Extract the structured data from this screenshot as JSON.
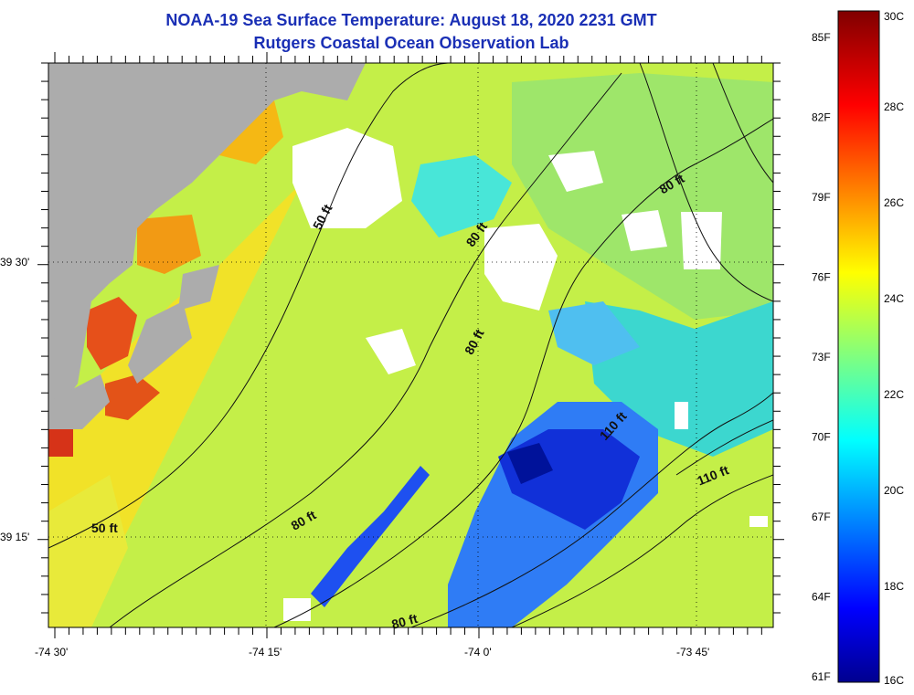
{
  "title": "NOAA-19 Sea Surface Temperature:  August 18, 2020 2231 GMT",
  "subtitle": "Rutgers Coastal Ocean Observation Lab",
  "x_ticks": [
    "-74 30'",
    "-74 15'",
    "-74 0'",
    "-73 45'"
  ],
  "y_ticks": [
    "39 30'",
    "39 15'"
  ],
  "contour_labels": [
    "50 ft",
    "50 ft",
    "80 ft",
    "80 ft",
    "80 ft",
    "80 ft",
    "80 ft",
    "110 ft",
    "110 ft"
  ],
  "colorbar": {
    "celsius": [
      "30C",
      "28C",
      "26C",
      "24C",
      "22C",
      "20C",
      "18C",
      "16C"
    ],
    "fahrenheit": [
      "85F",
      "82F",
      "79F",
      "76F",
      "73F",
      "70F",
      "67F",
      "64F",
      "61F"
    ],
    "min_c": 16,
    "max_c": 30
  },
  "colors": {
    "land": "#acacac",
    "cloud": "#ffffff",
    "title": "#1a2fb5"
  }
}
